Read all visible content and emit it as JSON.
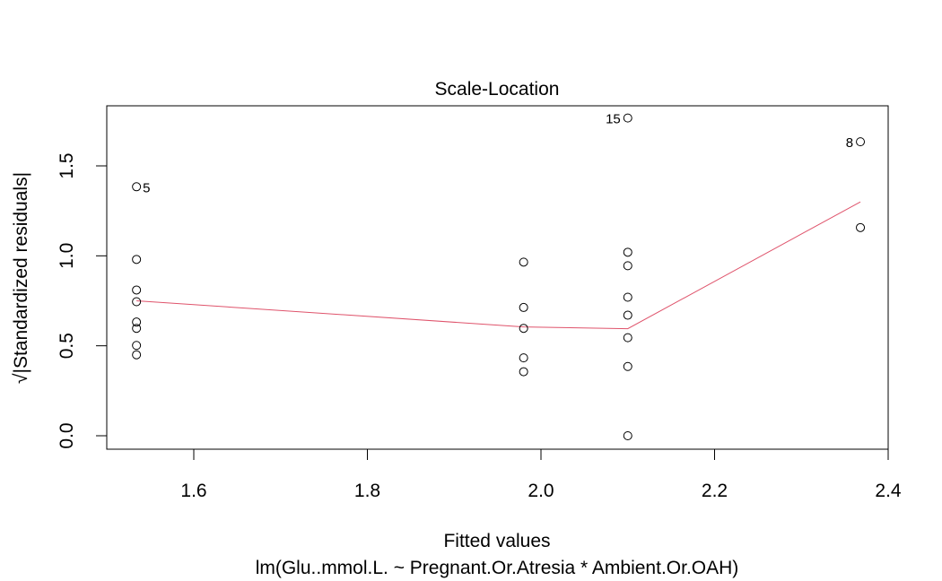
{
  "chart_data": {
    "type": "scatter",
    "title": "Scale-Location",
    "xlabel": "Fitted values",
    "subtitle": "lm(Glu..mmol.L. ~ Pregnant.Or.Atresia * Ambient.Or.OAH)",
    "ylabel": "√|Standardized residuals|",
    "xlim": [
      1.5,
      2.4
    ],
    "ylim": [
      0.0,
      1.8
    ],
    "x_ticks": [
      {
        "value": 1.6,
        "label": "1.6"
      },
      {
        "value": 1.8,
        "label": "1.8"
      },
      {
        "value": 2.0,
        "label": "2.0"
      },
      {
        "value": 2.2,
        "label": "2.2"
      },
      {
        "value": 2.4,
        "label": "2.4"
      }
    ],
    "y_ticks": [
      {
        "value": 0.0,
        "label": "0.0"
      },
      {
        "value": 0.5,
        "label": "0.5"
      },
      {
        "value": 1.0,
        "label": "1.0"
      },
      {
        "value": 1.5,
        "label": "1.5"
      }
    ],
    "grid": false,
    "points": [
      {
        "x": 1.534,
        "y": 1.384,
        "label": "5"
      },
      {
        "x": 1.534,
        "y": 0.98
      },
      {
        "x": 1.534,
        "y": 0.81
      },
      {
        "x": 1.534,
        "y": 0.745
      },
      {
        "x": 1.534,
        "y": 0.632
      },
      {
        "x": 1.534,
        "y": 0.597
      },
      {
        "x": 1.534,
        "y": 0.502
      },
      {
        "x": 1.534,
        "y": 0.45
      },
      {
        "x": 1.98,
        "y": 0.965
      },
      {
        "x": 1.98,
        "y": 0.713
      },
      {
        "x": 1.98,
        "y": 0.597
      },
      {
        "x": 1.98,
        "y": 0.433
      },
      {
        "x": 1.98,
        "y": 0.356
      },
      {
        "x": 2.1,
        "y": 1.766,
        "label": "15"
      },
      {
        "x": 2.1,
        "y": 1.02
      },
      {
        "x": 2.1,
        "y": 0.945
      },
      {
        "x": 2.1,
        "y": 0.77
      },
      {
        "x": 2.1,
        "y": 0.67
      },
      {
        "x": 2.1,
        "y": 0.545
      },
      {
        "x": 2.1,
        "y": 0.385
      },
      {
        "x": 2.1,
        "y": 0.0
      },
      {
        "x": 2.368,
        "y": 1.634,
        "label": "8"
      },
      {
        "x": 2.368,
        "y": 1.157
      }
    ],
    "smoother": {
      "color": "#DF536B",
      "points": [
        {
          "x": 1.534,
          "y": 0.75
        },
        {
          "x": 1.98,
          "y": 0.605
        },
        {
          "x": 2.1,
          "y": 0.595
        },
        {
          "x": 2.368,
          "y": 1.3
        }
      ]
    }
  }
}
